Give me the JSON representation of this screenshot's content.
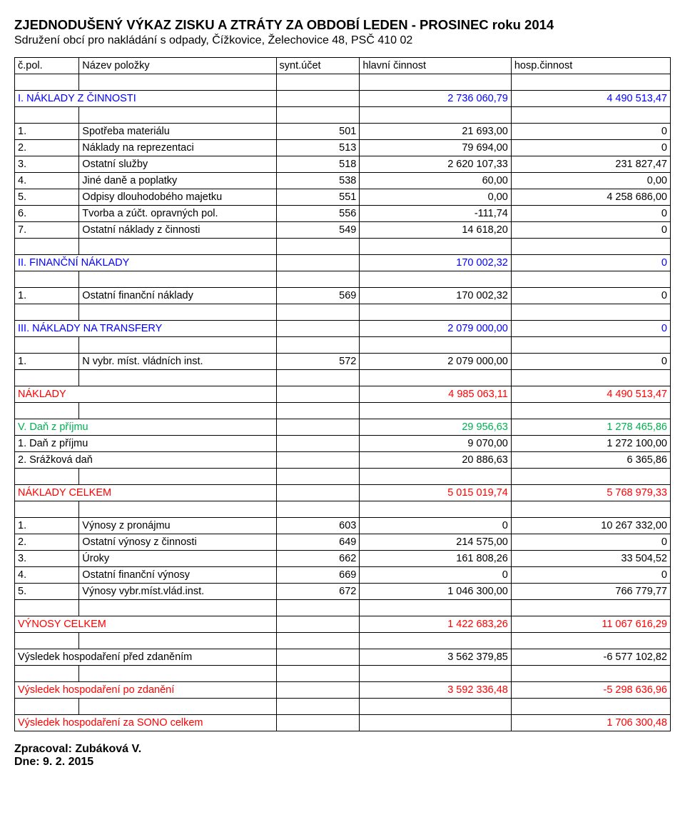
{
  "title": "ZJEDNODUŠENÝ VÝKAZ ZISKU A ZTRÁTY ZA OBDOBÍ LEDEN - PROSINEC roku 2014",
  "subtitle": "Sdružení obcí pro nakládání s odpady, Čížkovice, Želechovice 48, PSČ 410 02",
  "header": {
    "c1": "č.pol.",
    "c2": "Název položky",
    "c3": "synt.účet",
    "c4": "hlavní činnost",
    "c5": "hosp.činnost"
  },
  "s1": {
    "code": "I.",
    "label": "NÁKLADY Z ČINNOSTI",
    "v4": "2 736 060,79",
    "v5": "4 490 513,47"
  },
  "s1r1": {
    "n": "1.",
    "label": "Spotřeba materiálu",
    "acc": "501",
    "v4": "21 693,00",
    "v5": "0"
  },
  "s1r2": {
    "n": "2.",
    "label": "Náklady na reprezentaci",
    "acc": "513",
    "v4": "79 694,00",
    "v5": "0"
  },
  "s1r3": {
    "n": "3.",
    "label": "Ostatní služby",
    "acc": "518",
    "v4": "2 620 107,33",
    "v5": "231 827,47"
  },
  "s1r4": {
    "n": "4.",
    "label": "Jiné daně a poplatky",
    "acc": "538",
    "v4": "60,00",
    "v5": "0,00"
  },
  "s1r5": {
    "n": "5.",
    "label": "Odpisy dlouhodobého majetku",
    "acc": "551",
    "v4": "0,00",
    "v5": "4 258 686,00"
  },
  "s1r6": {
    "n": "6.",
    "label": "Tvorba a zúčt. opravných pol.",
    "acc": "556",
    "v4": "-111,74",
    "v5": "0"
  },
  "s1r7": {
    "n": "7.",
    "label": "Ostatní náklady z činnosti",
    "acc": "549",
    "v4": "14 618,20",
    "v5": "0"
  },
  "s2": {
    "code": "II.",
    "label": "FINANČNÍ NÁKLADY",
    "v4": "170 002,32",
    "v5": "0"
  },
  "s2r1": {
    "n": "1.",
    "label": "Ostatní finanční náklady",
    "acc": "569",
    "v4": "170 002,32",
    "v5": "0"
  },
  "s3": {
    "code": "III.",
    "label": "NÁKLADY NA TRANSFERY",
    "v4": "2 079 000,00",
    "v5": "0"
  },
  "s3r1": {
    "n": "1.",
    "label": "N vybr. míst. vládních inst.",
    "acc": "572",
    "v4": "2 079 000,00",
    "v5": "0"
  },
  "naklady": {
    "label": "NÁKLADY",
    "v4": "4 985 063,11",
    "v5": "4 490 513,47"
  },
  "dsec": {
    "code": "V.",
    "label": "Daň z příjmu",
    "v4": "29 956,63",
    "v5": "1 278 465,86"
  },
  "d1": {
    "n": "1.",
    "label": "Daň z příjmu",
    "v4": "9 070,00",
    "v5": "1 272 100,00"
  },
  "d2": {
    "n": "2.",
    "label": "Srážková daň",
    "v4": "20 886,63",
    "v5": "6 365,86"
  },
  "ncelkem": {
    "label": "NÁKLADY CELKEM",
    "v4": "5 015 019,74",
    "v5": "5 768 979,33"
  },
  "v1": {
    "n": "1.",
    "label": "Výnosy z pronájmu",
    "acc": "603",
    "v4": "0",
    "v5": "10 267 332,00"
  },
  "v2": {
    "n": "2.",
    "label": "Ostatní výnosy z činnosti",
    "acc": "649",
    "v4": "214 575,00",
    "v5": "0"
  },
  "v3": {
    "n": "3.",
    "label": "Úroky",
    "acc": "662",
    "v4": "161 808,26",
    "v5": "33 504,52"
  },
  "v4": {
    "n": "4.",
    "label": "Ostatní finanční výnosy",
    "acc": "669",
    "v4": "0",
    "v5": "0"
  },
  "v5": {
    "n": "5.",
    "label": "Výnosy vybr.míst.vlád.inst.",
    "acc": "672",
    "v4": "1 046 300,00",
    "v5": "766 779,77"
  },
  "vcelkem": {
    "label": "VÝNOSY CELKEM",
    "v4": "1 422 683,26",
    "v5": "11 067 616,29"
  },
  "vh1": {
    "label": "Výsledek hospodaření před zdaněním",
    "v4": "3 562 379,85",
    "v5": "-6 577 102,82"
  },
  "vh2": {
    "label": "Výsledek hospodaření po zdanění",
    "v4": "3 592 336,48",
    "v5": "-5 298 636,96"
  },
  "vh3": {
    "label": "Výsledek hospodaření za SONO celkem",
    "v5": "1 706 300,48"
  },
  "footer1": "Zpracoval: Zubáková V.",
  "footer2": "Dne: 9. 2. 2015"
}
